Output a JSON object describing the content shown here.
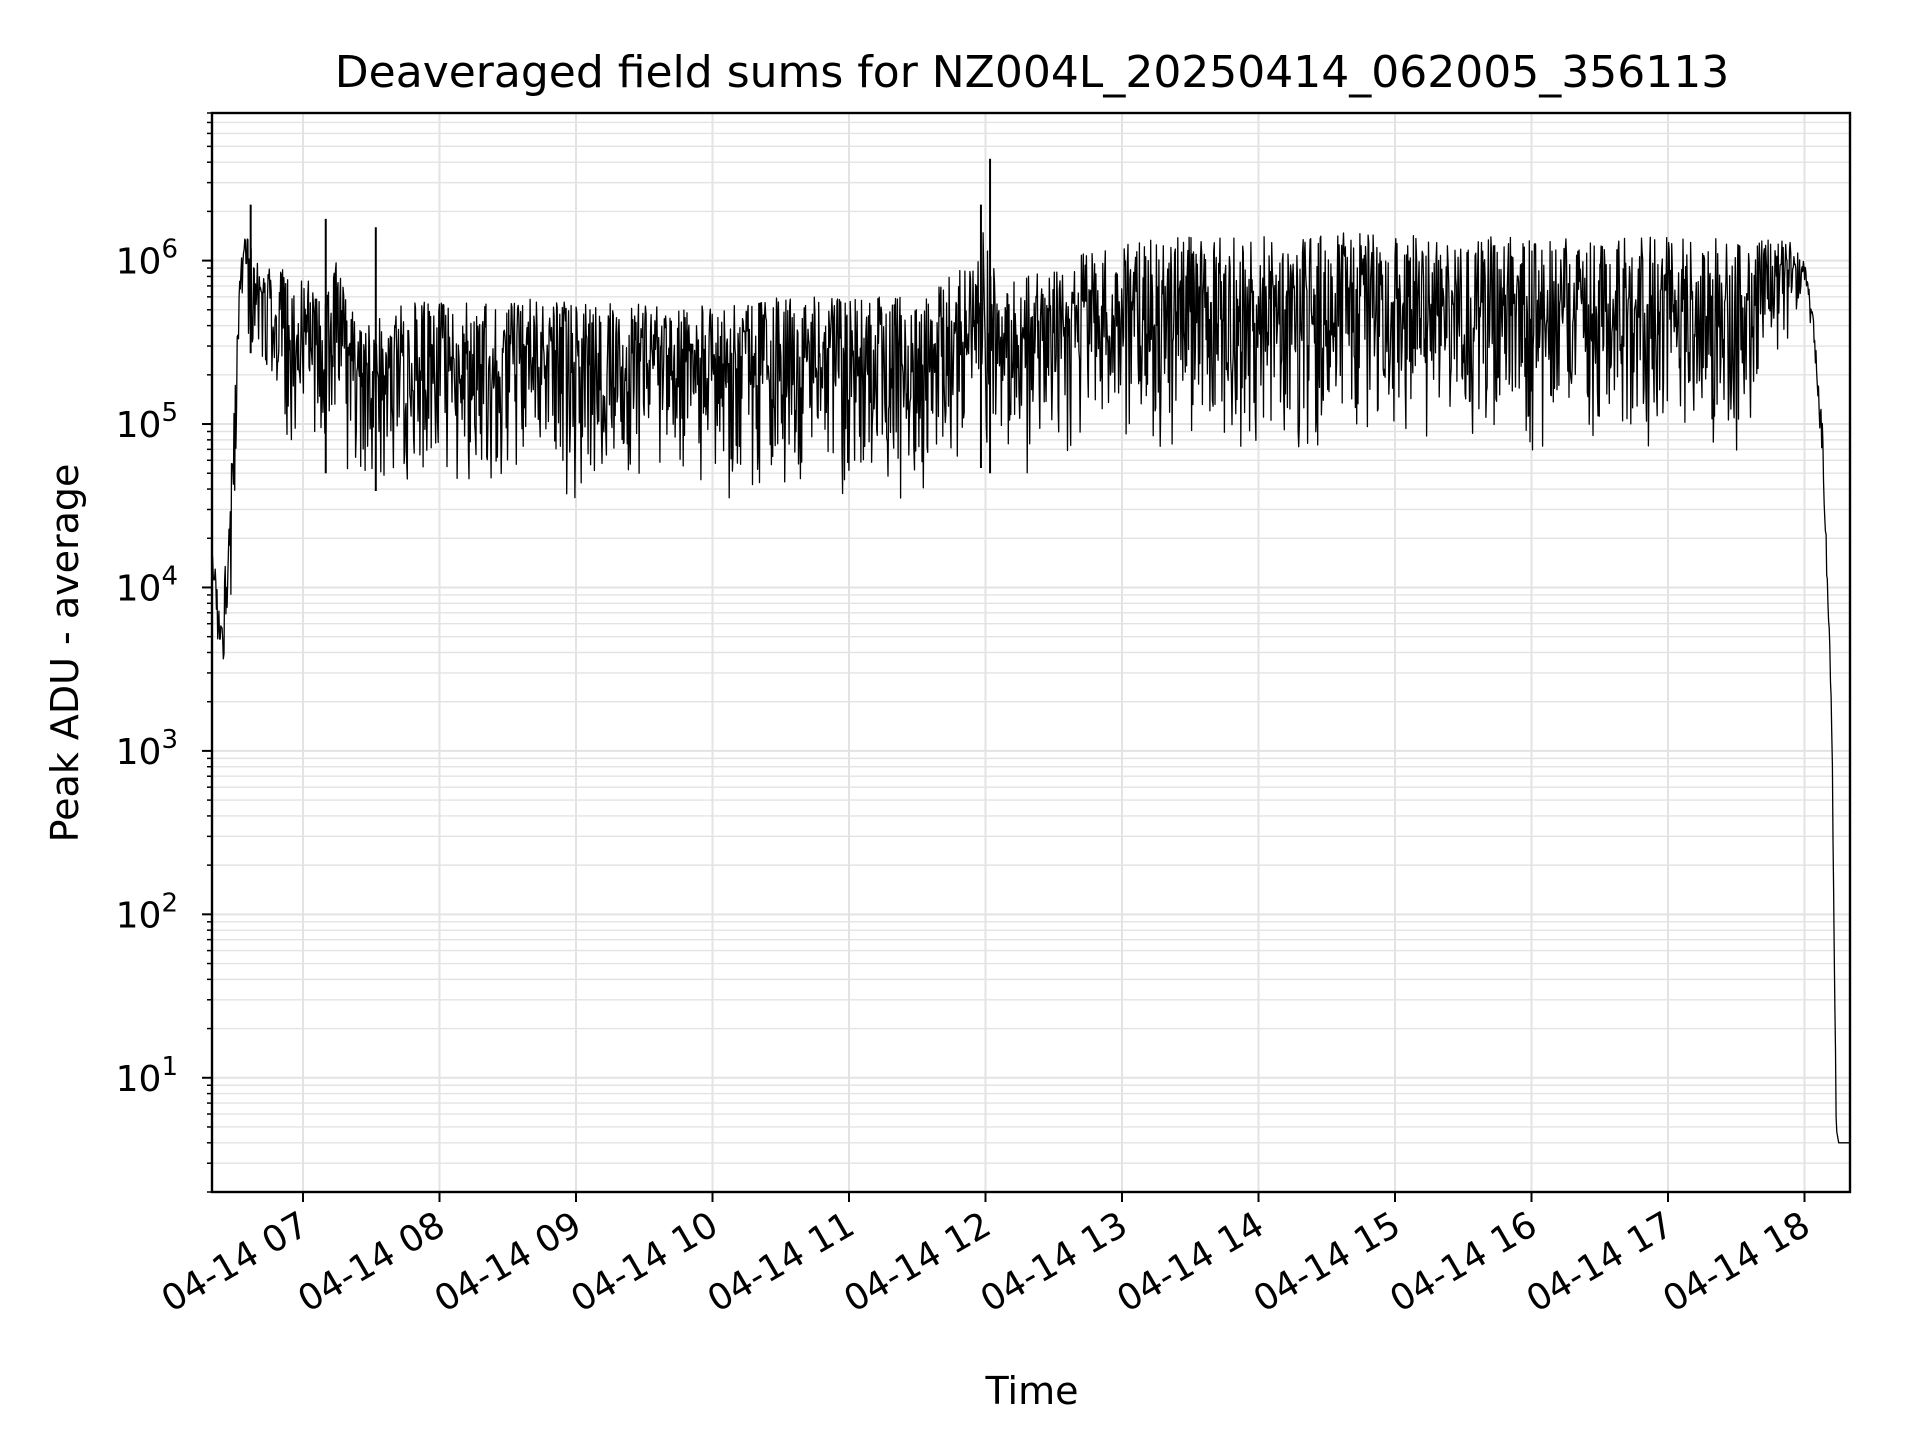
{
  "chart_data": {
    "type": "line",
    "title": "Deaveraged field sums for NZ004L_20250414_062005_356113",
    "xlabel": "Time",
    "ylabel": "Peak ADU - average",
    "yscale": "log",
    "ylim": [
      2,
      8000000
    ],
    "xlim": [
      "2025-04-14 06:20",
      "2025-04-14 18:20"
    ],
    "grid": true,
    "line_color": "#000000",
    "grid_color": "#e3e3e3",
    "x_ticks": [
      "2025-04-14 07:00",
      "2025-04-14 08:00",
      "2025-04-14 09:00",
      "2025-04-14 10:00",
      "2025-04-14 11:00",
      "2025-04-14 12:00",
      "2025-04-14 13:00",
      "2025-04-14 14:00",
      "2025-04-14 15:00",
      "2025-04-14 16:00",
      "2025-04-14 17:00",
      "2025-04-14 18:00"
    ],
    "x_tick_labels": [
      "04-14 07",
      "04-14 08",
      "04-14 09",
      "04-14 10",
      "04-14 11",
      "04-14 12",
      "04-14 13",
      "04-14 14",
      "04-14 15",
      "04-14 16",
      "04-14 17",
      "04-14 18"
    ],
    "y_ticks": [
      10,
      100,
      1000,
      10000,
      100000,
      1000000
    ],
    "y_tick_labels": [
      {
        "base": "10",
        "exp": "1"
      },
      {
        "base": "10",
        "exp": "2"
      },
      {
        "base": "10",
        "exp": "3"
      },
      {
        "base": "10",
        "exp": "4"
      },
      {
        "base": "10",
        "exp": "5"
      },
      {
        "base": "10",
        "exp": "6"
      }
    ],
    "envelope": {
      "x": [
        "2025-04-14 06:20",
        "2025-04-14 06:24",
        "2025-04-14 06:28",
        "2025-04-14 06:33",
        "2025-04-14 06:36",
        "2025-04-14 06:40",
        "2025-04-14 06:45",
        "2025-04-14 06:50",
        "2025-04-14 06:55",
        "2025-04-14 07:00",
        "2025-04-14 07:05",
        "2025-04-14 07:10",
        "2025-04-14 07:15",
        "2025-04-14 07:20",
        "2025-04-14 07:30",
        "2025-04-14 07:40",
        "2025-04-14 07:50",
        "2025-04-14 08:00",
        "2025-04-14 08:30",
        "2025-04-14 09:00",
        "2025-04-14 09:30",
        "2025-04-14 10:00",
        "2025-04-14 10:30",
        "2025-04-14 11:00",
        "2025-04-14 11:30",
        "2025-04-14 11:55",
        "2025-04-14 12:00",
        "2025-04-14 12:05",
        "2025-04-14 12:30",
        "2025-04-14 13:00",
        "2025-04-14 13:30",
        "2025-04-14 14:00",
        "2025-04-14 14:30",
        "2025-04-14 15:00",
        "2025-04-14 15:30",
        "2025-04-14 16:00",
        "2025-04-14 16:30",
        "2025-04-14 17:00",
        "2025-04-14 17:30",
        "2025-04-14 17:55",
        "2025-04-14 18:00",
        "2025-04-14 18:04",
        "2025-04-14 18:08",
        "2025-04-14 18:12",
        "2025-04-14 18:14",
        "2025-04-14 18:15",
        "2025-04-14 18:20"
      ],
      "upper": [
        20000,
        7000,
        40000,
        1400000,
        1600000,
        1000000,
        900000,
        1000000,
        700000,
        800000,
        700000,
        600000,
        1200000,
        500000,
        450000,
        500000,
        600000,
        550000,
        600000,
        550000,
        550000,
        550000,
        600000,
        600000,
        600000,
        1000000,
        3000000,
        700000,
        1000000,
        1300000,
        1400000,
        1400000,
        1500000,
        1450000,
        1400000,
        1400000,
        1450000,
        1400000,
        1400000,
        1300000,
        1000000,
        450000,
        100000,
        2000,
        5,
        4,
        4
      ],
      "lower": [
        3000,
        3000,
        6000,
        500000,
        300000,
        200000,
        150000,
        100000,
        60000,
        100000,
        80000,
        50000,
        60000,
        40000,
        40000,
        35000,
        30000,
        30000,
        35000,
        30000,
        30000,
        30000,
        30000,
        30000,
        35000,
        60000,
        50000,
        50000,
        50000,
        60000,
        70000,
        60000,
        70000,
        70000,
        70000,
        60000,
        70000,
        60000,
        60000,
        400000,
        700000,
        300000,
        50000,
        1000,
        4,
        4,
        4
      ]
    },
    "spikes": [
      {
        "x": "2025-04-14 06:37",
        "y": 2200000
      },
      {
        "x": "2025-04-14 07:10",
        "y": 1800000
      },
      {
        "x": "2025-04-14 07:32",
        "y": 1600000
      },
      {
        "x": "2025-04-14 11:58",
        "y": 2200000
      },
      {
        "x": "2025-04-14 12:02",
        "y": 4200000
      }
    ]
  }
}
